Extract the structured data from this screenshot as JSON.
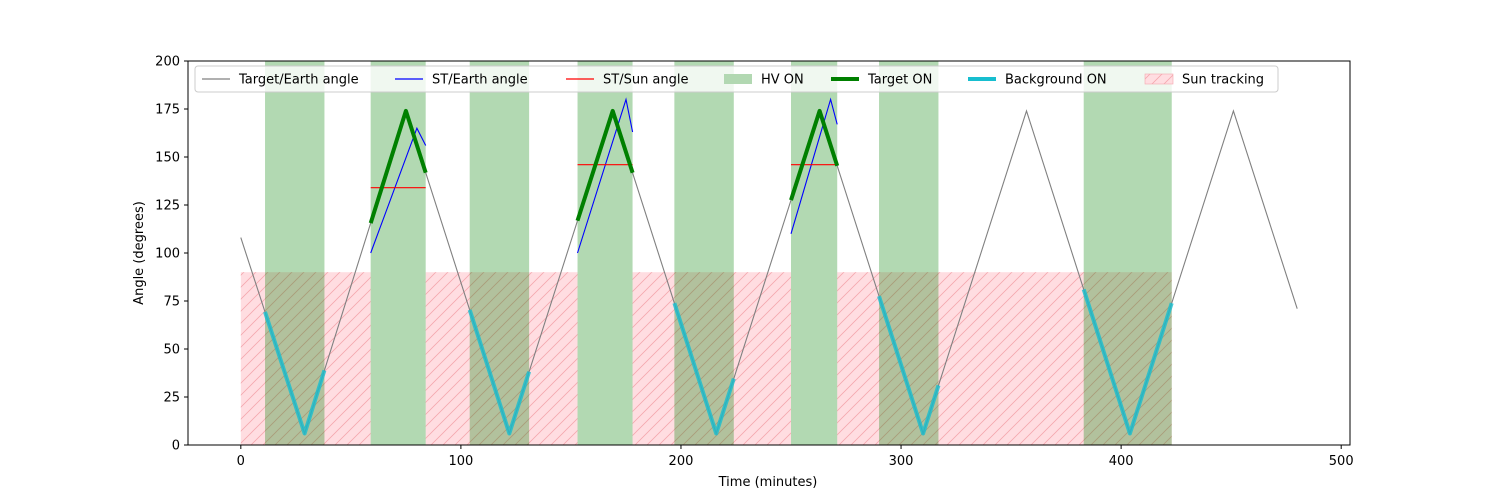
{
  "chart_data": {
    "type": "line",
    "xlabel": "Time (minutes)",
    "ylabel": "Angle (degrees)",
    "xlim": [
      -24,
      504
    ],
    "ylim": [
      0,
      200
    ],
    "xticks": [
      0,
      100,
      200,
      300,
      400,
      500
    ],
    "yticks": [
      0,
      25,
      50,
      75,
      100,
      125,
      150,
      175,
      200
    ],
    "grid": false,
    "legend_position": "top",
    "legend": [
      {
        "label": "Target/Earth angle",
        "kind": "line",
        "color": "#808080"
      },
      {
        "label": "ST/Earth angle",
        "kind": "line",
        "color": "#0000ff"
      },
      {
        "label": "ST/Sun angle",
        "kind": "line",
        "color": "#ff0000"
      },
      {
        "label": "HV ON",
        "kind": "patch",
        "color": "#b2d8b2"
      },
      {
        "label": "Target ON",
        "kind": "thickline",
        "color": "#008000"
      },
      {
        "label": "Background ON",
        "kind": "thickline",
        "color": "#17becf"
      },
      {
        "label": "Sun tracking",
        "kind": "hatch",
        "color": "#ffdde1"
      }
    ],
    "hv_on_intervals": [
      [
        11,
        38
      ],
      [
        59,
        84
      ],
      [
        104,
        131
      ],
      [
        153,
        178
      ],
      [
        197,
        224
      ],
      [
        250,
        271
      ],
      [
        290,
        317
      ],
      [
        383,
        423
      ]
    ],
    "sun_tracking": {
      "y_top": 90,
      "intervals": [
        [
          0,
          59
        ],
        [
          84,
          153
        ],
        [
          178,
          250
        ],
        [
          271,
          423
        ]
      ]
    },
    "target_earth_angle": {
      "x": [
        0,
        29,
        75,
        122,
        169,
        216,
        263,
        310,
        357,
        404,
        451,
        480
      ],
      "y": [
        108,
        6,
        174,
        6,
        174,
        6,
        174,
        6,
        174,
        6,
        174,
        71
      ]
    },
    "st_earth_angle": [
      {
        "x": [
          59,
          80,
          84
        ],
        "y": [
          100,
          165,
          156
        ]
      },
      {
        "x": [
          153,
          175,
          178
        ],
        "y": [
          100,
          180,
          163
        ]
      },
      {
        "x": [
          250,
          268,
          271
        ],
        "y": [
          110,
          180,
          167
        ]
      }
    ],
    "st_sun_angle": [
      {
        "x": [
          59,
          84
        ],
        "y": [
          134,
          134
        ]
      },
      {
        "x": [
          153,
          178
        ],
        "y": [
          146,
          146
        ]
      },
      {
        "x": [
          250,
          271
        ],
        "y": [
          146,
          146
        ]
      }
    ],
    "target_on_intervals": [
      [
        59,
        84
      ],
      [
        153,
        178
      ],
      [
        250,
        271
      ]
    ],
    "background_on_intervals": [
      [
        11,
        38
      ],
      [
        104,
        131
      ],
      [
        197,
        224
      ],
      [
        290,
        317
      ],
      [
        383,
        423
      ]
    ]
  }
}
